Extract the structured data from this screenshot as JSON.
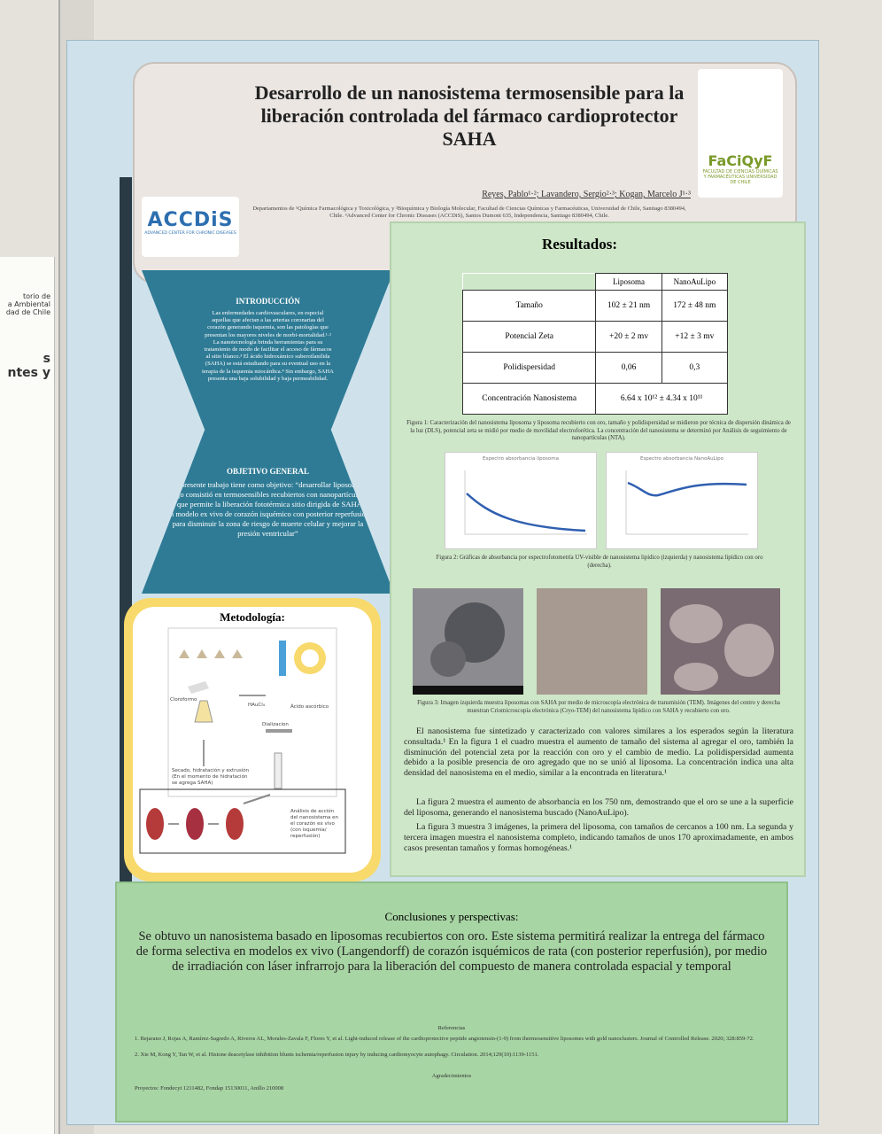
{
  "neighbor_poster": {
    "fragments": [
      "torio de",
      "a Ambiental",
      "dad de Chile",
      "s",
      "ntes y"
    ]
  },
  "header": {
    "title": "Desarrollo de un nanosistema termosensible para la liberación controlada del fármaco cardioprotector SAHA",
    "authors": "Reyes, Pablo¹·²; Lavandero, Sergio²·³; Kogan, Marcelo J¹·³",
    "affiliation": "Departamentos de ¹Química Farmacológica y Toxicológica, y ²Bioquímica y Biología Molecular, Facultad de Ciencias Químicas y Farmacéuticas, Universidad de Chile, Santiago 8380494, Chile. ³Advanced Center for Chronic Diseases (ACCDiS), Santos Dumont 635, Independencia, Santiago 8380494, Chile.",
    "logo_left": {
      "name": "ACCDiS",
      "tagline": "ADVANCED CENTER FOR CHRONIC DISEASES"
    },
    "logo_right": {
      "name": "FaCiQyF",
      "tagline": "FACULTAD DE CIENCIAS QUÍMICAS Y FARMACÉUTICAS UNIVERSIDAD DE CHILE"
    }
  },
  "introduccion": {
    "heading": "INTRODUCCIÓN",
    "text": "Las enfermedades cardiovasculares, en especial aquellas que afectan a las arterias coronarias del corazón generando isquemia, son las patologías que presentan los mayores niveles de morbi-mortalidad.¹·² La nanotecnología brinda herramientas para su tratamiento de modo de facilitar el acceso de fármacos al sitio blanco.³ El ácido hidroxámico suberoilanilida (SAHA) se está estudiando para su eventual uso en la terapia de la isquemia miocárdica.⁴ Sin embargo, SAHA presenta una baja solubilidad y baja permeabilidad."
  },
  "objetivo": {
    "heading": "OBJETIVO GENERAL",
    "text": "El presente trabajo tiene como objetivo: “desarrollar liposomas trabajo consistió en termosensibles recubiertos con nanopartículas de oro que permite la liberación fototérmica sitio dirigida de SAHA en un modelo ex vivo de corazón isquémico con posterior reperfusión para disminuir la zona de riesgo de muerte celular y mejorar la presión ventricular”"
  },
  "metodologia": {
    "heading": "Metodología:",
    "labels": [
      "Cloroformo",
      "HAuCl₄",
      "Ácido ascórbico",
      "Dializacion",
      "Secado, hidratación y extrusión (En el momento de hidratación se agrega SAHA)",
      "Análisis de acción del nanosistema en el corazón ex vivo (con isquemia/ reperfusión)"
    ]
  },
  "resultados": {
    "heading": "Resultados:",
    "table": {
      "columns": [
        "Liposoma",
        "NanoAuLipo"
      ],
      "rows": [
        [
          "Tamaño",
          "102 ± 21 nm",
          "172 ± 48 nm"
        ],
        [
          "Potencial Zeta",
          "+20 ± 2 mv",
          "+12 ± 3 mv"
        ],
        [
          "Polidispersidad",
          "0,06",
          "0,3"
        ],
        [
          "Concentración Nanosistema",
          "6.64 x 10¹² ± 4.34 x 10¹¹"
        ]
      ]
    },
    "figure1_caption": "Figura 1: Caracterización del nanosistema liposoma y liposoma recubierto con oro, tamaño y polidispersidad se midieron por técnica de dispersión dinámica de la luz (DLS), potencial zeta se midió por medio de movilidad electroforética. La concentración del nanosistema se determinó por Análisis de seguimiento de nanopartículas (NTA).",
    "graph_titles": [
      "Espectro absorbancia liposoma",
      "Espectro absorbancia NanoAuLipo"
    ],
    "figure2_caption": "Figura 2: Gráficas de absorbancia por espectrofotometría UV-visible de nanosistema lipídico (izquierda) y nanosistema lipídico con oro (derecha).",
    "figure3_caption": "Figura 3: Imagen izquierda muestra liposomas con SAHA por medio de microscopía electrónica de transmisión (TEM). Imágenes del centro y derecha muestran Criomicroscopía electrónica (Cryo-TEM) del nanosistema lipídico con SAHA y recubierto con oro.",
    "paragraphs": [
      "El nanosistema fue sintetizado y caracterizado con valores similares a los esperados según la literatura consultada.¹ En la figura 1 el cuadro muestra el aumento de tamaño del sistema al agregar el oro, también la disminución del potencial zeta por la reacción con oro y el cambio de medio. La polidispersidad aumenta debido a la posible presencia de oro agregado que no se unió al liposoma. La concentración indica una alta densidad del nanosistema en el medio, similar a la encontrada en literatura.¹",
      "La figura 2 muestra el aumento de absorbancia en los 750 nm, demostrando que el oro se une a la superficie del liposoma, generando el nanosistema buscado (NanoAuLipo).",
      "La figura 3 muestra 3 imágenes, la primera del liposoma, con tamaños de cercanos a 100 nm. La segunda y tercera imagen muestra el nanosistema completo, indicando tamaños de unos 170 aproximadamente, en ambos casos presentan tamaños y formas homogéneas.¹"
    ]
  },
  "conclusiones": {
    "heading": "Conclusiones y perspectivas:",
    "text": "Se obtuvo un nanosistema basado en liposomas recubiertos con oro. Este sistema permitirá realizar la entrega del fármaco de forma selectiva en modelos ex vivo (Langendorff) de corazón isquémicos de rata (con posterior reperfusión), por medio de irradiación con láser infrarrojo para la liberación del compuesto de manera controlada espacial y temporal",
    "references_heading": "Referencias",
    "references": [
      "1. Bejarano J, Rojas A, Ramírez-Sagredo A, Riveros AL, Morales-Zavala F, Flores Y, et al. Light-induced release of the cardioprotective peptide angiotensin-(1-9) from thermosensitive liposomes with gold nanoclusters. Journal of Controlled Release. 2020; 328:859-72.",
      "2. Xie M, Kong Y, Tan W, et al. Histone deacetylase inhibition blunts ischemia/reperfusion injury by inducing cardiomyocyte autophagy. Circulation. 2014;129(10):1139-1151."
    ],
    "acknowledgements_heading": "Agradecimientos",
    "acknowledgements": "Proyectos: Fondecyt 1211482, Fondap 15130011, Anillo 210008"
  }
}
